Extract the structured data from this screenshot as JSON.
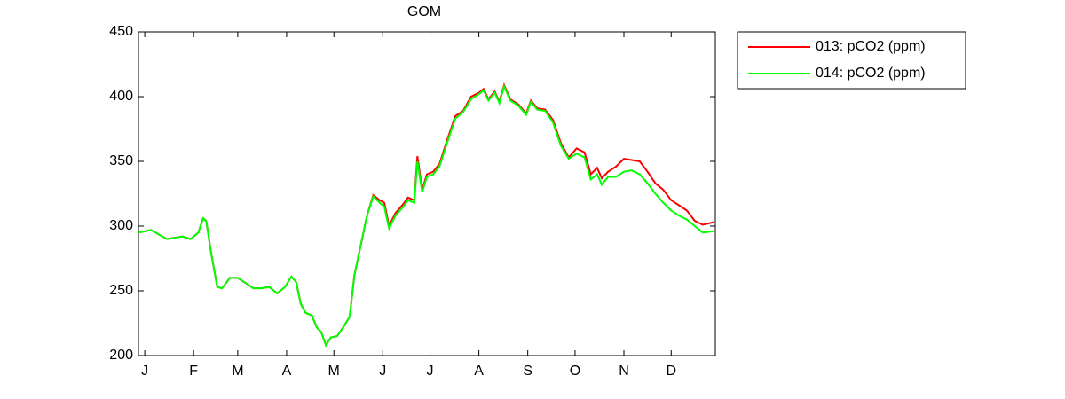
{
  "chart_data": {
    "type": "line",
    "title": "GOM",
    "x": [
      -3,
      5,
      15,
      25,
      30,
      35,
      38,
      40,
      43,
      47,
      50,
      55,
      60,
      65,
      70,
      75,
      80,
      85,
      90,
      94,
      97,
      100,
      103,
      107,
      110,
      113,
      116,
      119,
      123,
      127,
      131,
      134,
      138,
      142,
      146,
      150,
      153,
      156,
      160,
      165,
      168,
      172,
      174,
      177,
      180,
      184,
      188,
      193,
      198,
      203,
      208,
      213,
      216,
      219,
      223,
      226,
      229,
      233,
      238,
      243,
      246,
      250,
      255,
      260,
      265,
      270,
      275,
      280,
      284,
      288,
      291,
      295,
      300,
      305,
      310,
      315,
      320,
      325,
      330,
      335,
      340,
      345,
      350,
      355,
      362
    ],
    "series": [
      {
        "name": "013: pCO2 (ppm)",
        "color": "#ff0000",
        "values": [
          295,
          297,
          290,
          292,
          290,
          295,
          306,
          304,
          280,
          253,
          252,
          260,
          260,
          256,
          252,
          252,
          253,
          248,
          253,
          261,
          257,
          240,
          233,
          231,
          222,
          218,
          208,
          214,
          215,
          222,
          230,
          262,
          285,
          308,
          324,
          320,
          318,
          300,
          310,
          317,
          322,
          320,
          354,
          328,
          340,
          342,
          348,
          367,
          385,
          389,
          400,
          403,
          406,
          398,
          404,
          396,
          409,
          398,
          394,
          387,
          397,
          391,
          390,
          382,
          364,
          353,
          360,
          357,
          340,
          345,
          337,
          342,
          346,
          352,
          351,
          350,
          342,
          333,
          328,
          320,
          316,
          312,
          304,
          301,
          303
        ]
      },
      {
        "name": "014: pCO2 (ppm)",
        "color": "#00ff00",
        "values": [
          295,
          297,
          290,
          292,
          290,
          295,
          306,
          304,
          280,
          253,
          252,
          260,
          260,
          256,
          252,
          252,
          253,
          248,
          253,
          261,
          257,
          240,
          233,
          231,
          222,
          218,
          208,
          214,
          215,
          222,
          230,
          262,
          285,
          308,
          323,
          318,
          315,
          298,
          308,
          315,
          320,
          318,
          350,
          326,
          338,
          340,
          346,
          365,
          383,
          388,
          398,
          402,
          405,
          397,
          403,
          395,
          408,
          397,
          393,
          386,
          396,
          390,
          389,
          380,
          362,
          352,
          356,
          353,
          336,
          340,
          332,
          338,
          338,
          342,
          343,
          340,
          333,
          325,
          318,
          312,
          308,
          305,
          300,
          295,
          296
        ]
      }
    ],
    "xlim": [
      -3,
      363
    ],
    "xticks": [
      {
        "value": 1,
        "label": "J"
      },
      {
        "value": 32,
        "label": "F"
      },
      {
        "value": 60,
        "label": "M"
      },
      {
        "value": 91,
        "label": "A"
      },
      {
        "value": 121,
        "label": "M"
      },
      {
        "value": 152,
        "label": "J"
      },
      {
        "value": 182,
        "label": "J"
      },
      {
        "value": 213,
        "label": "A"
      },
      {
        "value": 244,
        "label": "S"
      },
      {
        "value": 274,
        "label": "O"
      },
      {
        "value": 305,
        "label": "N"
      },
      {
        "value": 335,
        "label": "D"
      }
    ],
    "ylim": [
      200,
      450
    ],
    "yticks": [
      200,
      250,
      300,
      350,
      400,
      450
    ],
    "grid": false,
    "legend": "northeastoutside"
  }
}
